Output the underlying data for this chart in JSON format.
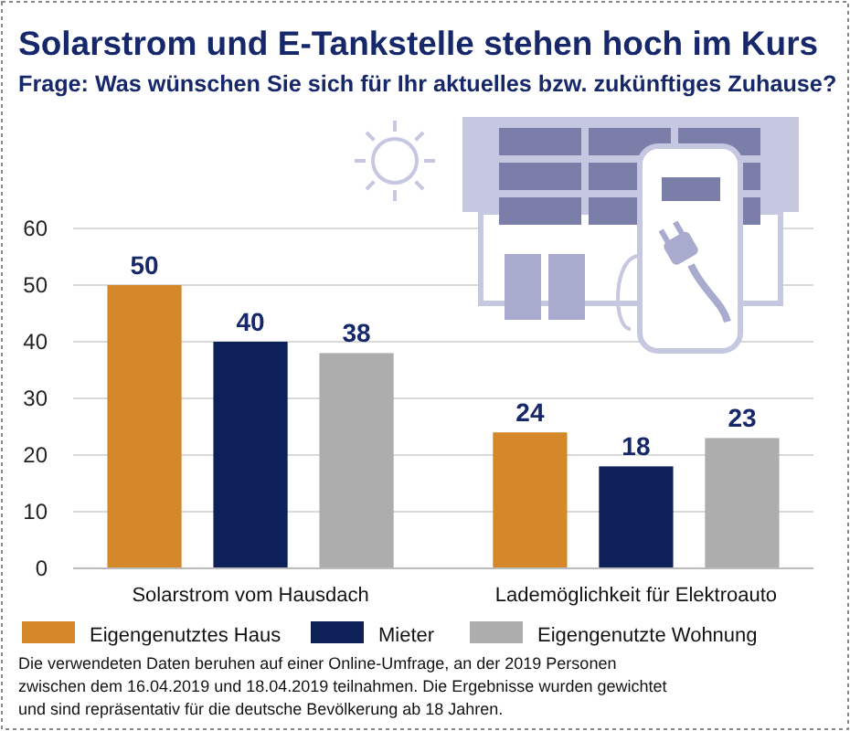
{
  "chart_data": {
    "type": "bar",
    "title": "Solarstrom und E-Tankstelle stehen hoch im Kurs",
    "subtitle": "Frage: Was wünschen Sie sich für Ihr aktuelles bzw. zukünftiges Zuhause?",
    "categories": [
      "Solarstrom vom Hausdach",
      "Lademöglichkeit für Elektroauto"
    ],
    "series": [
      {
        "name": "Eigengenutztes Haus",
        "color": "#d4882a",
        "values": [
          50,
          24
        ]
      },
      {
        "name": "Mieter",
        "color": "#0e2058",
        "values": [
          40,
          18
        ]
      },
      {
        "name": "Eigengenutzte Wohnung",
        "color": "#adadad",
        "values": [
          38,
          23
        ]
      }
    ],
    "ylim": [
      0,
      60
    ],
    "yticks": [
      0,
      10,
      20,
      30,
      40,
      50,
      60
    ],
    "grid": "y",
    "legend": "bottom",
    "data_labels": true,
    "annotations": [
      "Die verwendeten Daten beruhen auf einer Online-Umfrage, an der 2019 Personen zwischen dem 16.04.2019 und 18.04.2019 teilnahmen. Die Ergebnisse wurden gewichtet und sind repräsentativ für die deutsche Bevölkerung ab 18 Jahren."
    ]
  }
}
